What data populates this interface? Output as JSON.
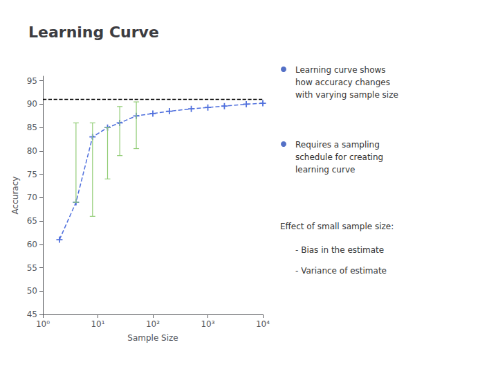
{
  "chart_data": {
    "type": "line",
    "title": "Learning Curve",
    "x_label": "Sample Size",
    "y_label": "Accuracy",
    "x": [
      2,
      4,
      8,
      15,
      25,
      50,
      100,
      200,
      500,
      1000,
      2000,
      5000,
      10000
    ],
    "values": [
      61,
      69,
      83,
      85,
      86,
      87.5,
      88,
      88.5,
      89,
      89.3,
      89.6,
      90.0,
      90.2
    ],
    "yerr_lower": [
      0,
      0,
      17,
      11,
      7,
      7,
      0,
      0,
      0,
      0,
      0,
      0,
      0
    ],
    "yerr_upper": [
      0,
      17,
      3,
      0,
      3.5,
      3,
      0,
      0,
      0,
      0,
      0,
      0,
      0
    ],
    "reference_line_y": 91,
    "log": "x",
    "xlim": [
      1,
      10000
    ],
    "xticks": [
      {
        "value": 1,
        "label": "10⁰"
      },
      {
        "value": 10,
        "label": "10¹"
      },
      {
        "value": 100,
        "label": "10²"
      },
      {
        "value": 1000,
        "label": "10³"
      },
      {
        "value": 10000,
        "label": "10⁴"
      }
    ],
    "ylim": [
      45,
      96
    ],
    "yticks": [
      45,
      50,
      55,
      60,
      65,
      70,
      75,
      80,
      85,
      90,
      95
    ],
    "grid": false,
    "marker": "+",
    "line_style": "dashed",
    "annotations": [
      "Learning curve shows\nhow accuracy changes\nwith varying sample size",
      "Requires a sampling\nschedule for creating\nlearning curve",
      "Effect of small sample size:",
      "- Bias in the estimate",
      "- Variance of estimate"
    ]
  }
}
